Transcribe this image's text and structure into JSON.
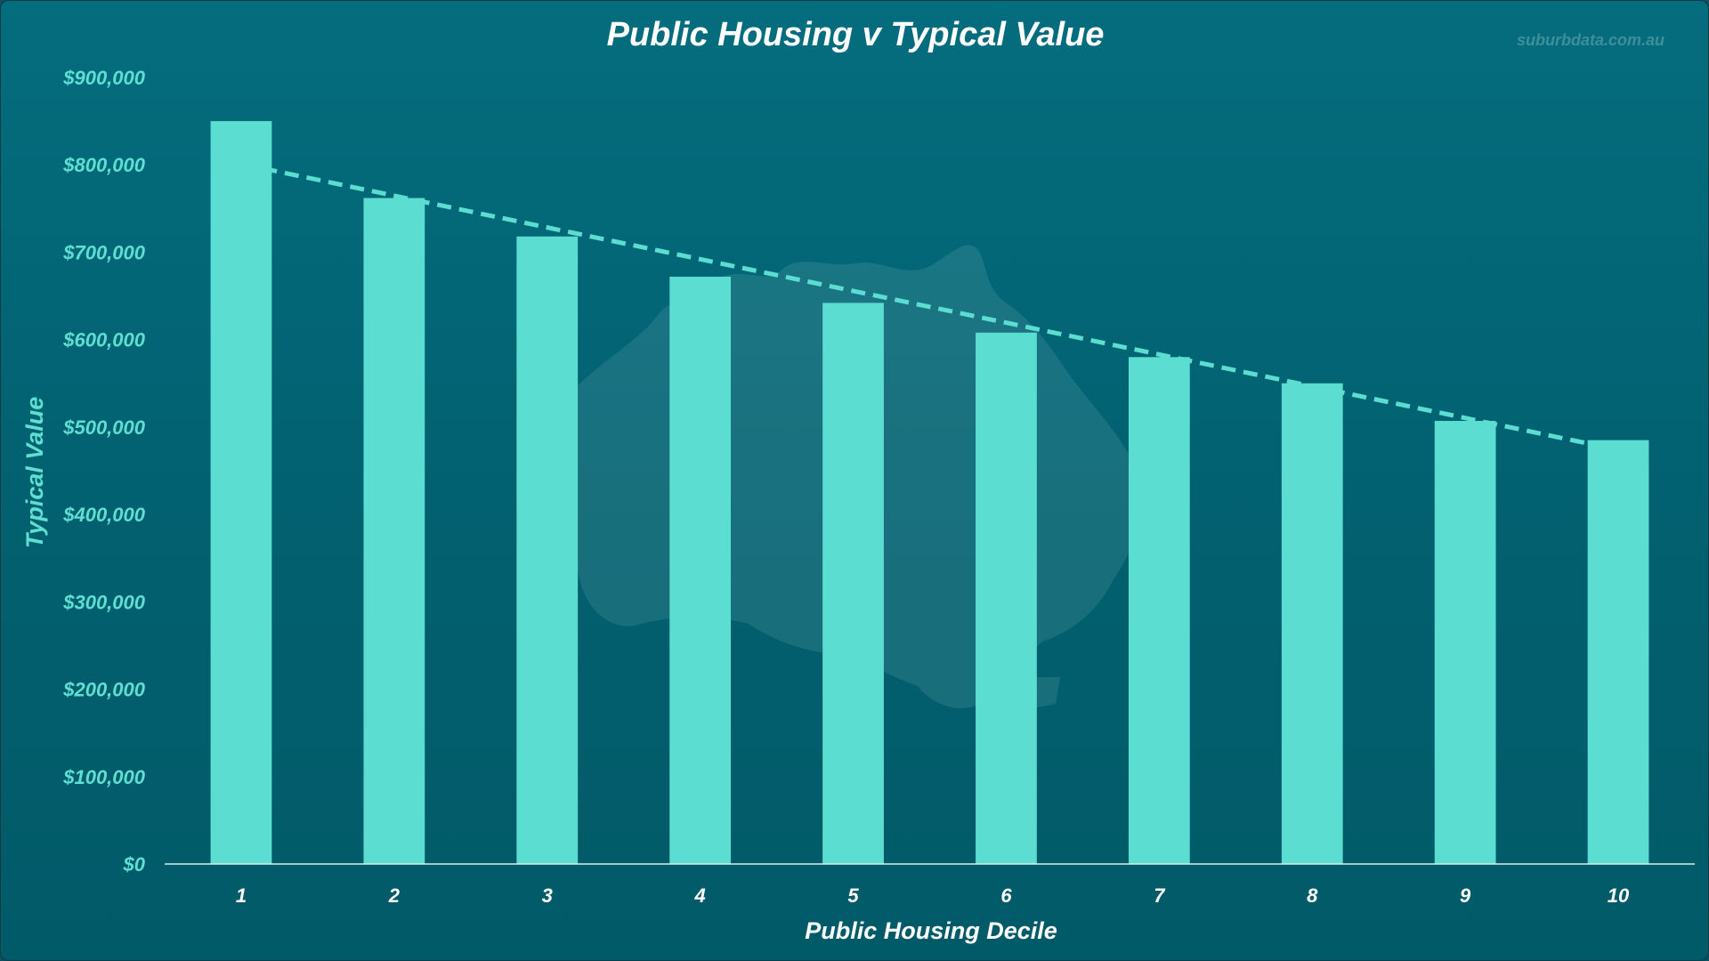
{
  "colors": {
    "bar": "#5cddd2",
    "trendline": "#5cddd2",
    "y_tick_text": "#5fded2",
    "x_tick_text": "#ffffff",
    "title_text": "#ffffff",
    "axis_line": "#d8eef0"
  },
  "watermark": {
    "text": "suburbdata.com.au",
    "logo_icon": "australia-map-logo-icon"
  },
  "chart_data": {
    "type": "bar",
    "title": "Public Housing v Typical Value",
    "xlabel": "Public Housing Decile",
    "ylabel": "Typical Value",
    "categories": [
      "1",
      "2",
      "3",
      "4",
      "5",
      "6",
      "7",
      "8",
      "9",
      "10"
    ],
    "series": [
      {
        "values": [
          850000,
          762000,
          718000,
          672000,
          642000,
          608000,
          580000,
          550000,
          507000,
          485000
        ]
      }
    ],
    "trendline": {
      "type": "linear",
      "style": "dashed",
      "start": 801000,
      "end": 474000
    },
    "ylim": [
      0,
      900000
    ],
    "yticks": [
      0,
      100000,
      200000,
      300000,
      400000,
      500000,
      600000,
      700000,
      800000,
      900000
    ],
    "ytick_labels": [
      "$0",
      "$100,000",
      "$200,000",
      "$300,000",
      "$400,000",
      "$500,000",
      "$600,000",
      "$700,000",
      "$800,000",
      "$900,000"
    ],
    "grid": false,
    "legend": "none"
  }
}
